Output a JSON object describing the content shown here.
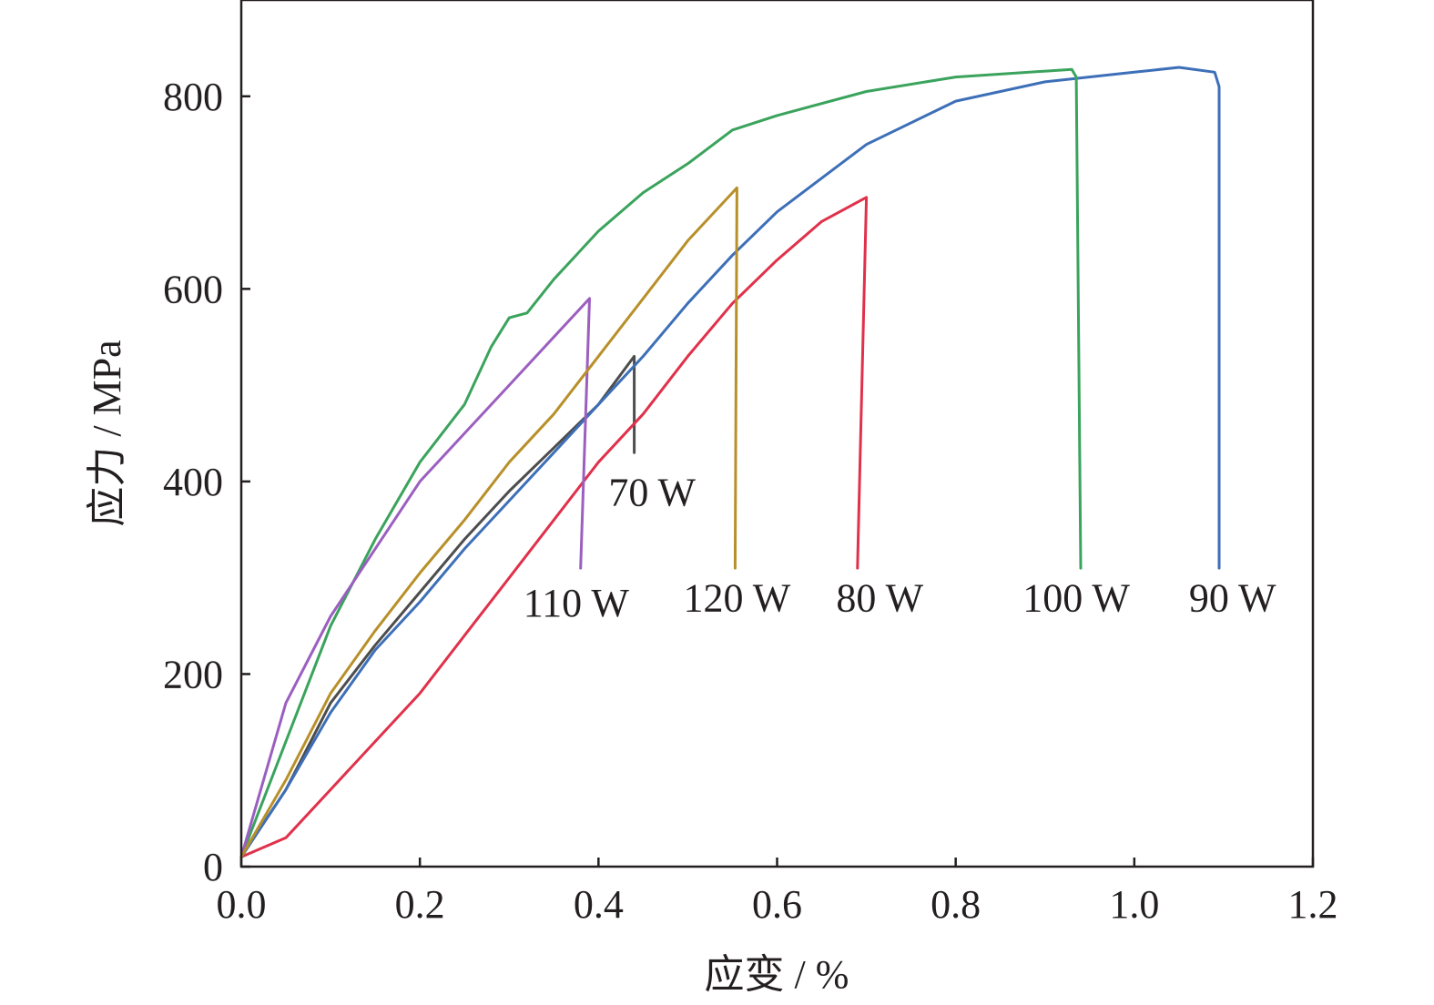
{
  "chart_data": {
    "type": "line",
    "xlabel": "应变 / %",
    "ylabel": "应力 / MPa",
    "xlim": [
      0.0,
      1.2
    ],
    "ylim": [
      0,
      900
    ],
    "x_ticks": [
      {
        "value": 0.0,
        "label": "0.0"
      },
      {
        "value": 0.2,
        "label": "0.2"
      },
      {
        "value": 0.4,
        "label": "0.4"
      },
      {
        "value": 0.6,
        "label": "0.6"
      },
      {
        "value": 0.8,
        "label": "0.8"
      },
      {
        "value": 1.0,
        "label": "1.0"
      },
      {
        "value": 1.2,
        "label": "1.2"
      }
    ],
    "y_ticks": [
      {
        "value": 0,
        "label": "0"
      },
      {
        "value": 200,
        "label": "200"
      },
      {
        "value": 400,
        "label": "400"
      },
      {
        "value": 600,
        "label": "600"
      },
      {
        "value": 800,
        "label": "800"
      }
    ],
    "grid": false,
    "series": [
      {
        "name": "70 W",
        "color": "#4d4d4d",
        "points": [
          [
            0.0,
            10
          ],
          [
            0.05,
            80
          ],
          [
            0.1,
            170
          ],
          [
            0.15,
            230
          ],
          [
            0.2,
            285
          ],
          [
            0.25,
            340
          ],
          [
            0.3,
            390
          ],
          [
            0.35,
            435
          ],
          [
            0.4,
            480
          ],
          [
            0.44,
            530
          ],
          [
            0.44,
            430
          ]
        ]
      },
      {
        "name": "80 W",
        "color": "#e0314b",
        "points": [
          [
            0.0,
            10
          ],
          [
            0.05,
            30
          ],
          [
            0.1,
            80
          ],
          [
            0.15,
            130
          ],
          [
            0.2,
            180
          ],
          [
            0.25,
            240
          ],
          [
            0.3,
            300
          ],
          [
            0.35,
            360
          ],
          [
            0.4,
            420
          ],
          [
            0.45,
            470
          ],
          [
            0.5,
            530
          ],
          [
            0.55,
            585
          ],
          [
            0.6,
            630
          ],
          [
            0.65,
            670
          ],
          [
            0.7,
            695
          ],
          [
            0.69,
            310
          ]
        ]
      },
      {
        "name": "90 W",
        "color": "#3d6fb8",
        "points": [
          [
            0.0,
            10
          ],
          [
            0.05,
            80
          ],
          [
            0.1,
            160
          ],
          [
            0.15,
            225
          ],
          [
            0.2,
            275
          ],
          [
            0.25,
            330
          ],
          [
            0.3,
            380
          ],
          [
            0.35,
            430
          ],
          [
            0.4,
            480
          ],
          [
            0.45,
            530
          ],
          [
            0.5,
            585
          ],
          [
            0.55,
            635
          ],
          [
            0.6,
            680
          ],
          [
            0.65,
            715
          ],
          [
            0.7,
            750
          ],
          [
            0.8,
            795
          ],
          [
            0.9,
            815
          ],
          [
            1.0,
            825
          ],
          [
            1.05,
            830
          ],
          [
            1.09,
            825
          ],
          [
            1.095,
            810
          ],
          [
            1.095,
            310
          ]
        ]
      },
      {
        "name": "100 W",
        "color": "#3aa35c",
        "points": [
          [
            0.0,
            10
          ],
          [
            0.05,
            130
          ],
          [
            0.1,
            250
          ],
          [
            0.15,
            340
          ],
          [
            0.2,
            420
          ],
          [
            0.25,
            480
          ],
          [
            0.28,
            540
          ],
          [
            0.3,
            570
          ],
          [
            0.32,
            575
          ],
          [
            0.35,
            610
          ],
          [
            0.4,
            660
          ],
          [
            0.45,
            700
          ],
          [
            0.5,
            730
          ],
          [
            0.55,
            765
          ],
          [
            0.6,
            780
          ],
          [
            0.7,
            805
          ],
          [
            0.8,
            820
          ],
          [
            0.93,
            828
          ],
          [
            0.935,
            820
          ],
          [
            0.94,
            310
          ]
        ]
      },
      {
        "name": "110 W",
        "color": "#9b5fc0",
        "points": [
          [
            0.0,
            10
          ],
          [
            0.05,
            170
          ],
          [
            0.1,
            260
          ],
          [
            0.15,
            330
          ],
          [
            0.2,
            400
          ],
          [
            0.25,
            450
          ],
          [
            0.3,
            500
          ],
          [
            0.35,
            550
          ],
          [
            0.39,
            590
          ],
          [
            0.38,
            310
          ]
        ]
      },
      {
        "name": "120 W",
        "color": "#b8902a",
        "points": [
          [
            0.0,
            10
          ],
          [
            0.05,
            90
          ],
          [
            0.1,
            180
          ],
          [
            0.15,
            245
          ],
          [
            0.2,
            305
          ],
          [
            0.25,
            360
          ],
          [
            0.3,
            420
          ],
          [
            0.35,
            470
          ],
          [
            0.4,
            530
          ],
          [
            0.45,
            590
          ],
          [
            0.5,
            650
          ],
          [
            0.55,
            700
          ],
          [
            0.555,
            705
          ],
          [
            0.553,
            310
          ]
        ]
      }
    ],
    "annotations": [
      {
        "text": "70 W",
        "x": 0.46,
        "y": 375
      },
      {
        "text": "110 W",
        "x": 0.375,
        "y": 260
      },
      {
        "text": "120 W",
        "x": 0.555,
        "y": 265
      },
      {
        "text": "80 W",
        "x": 0.715,
        "y": 265
      },
      {
        "text": "100 W",
        "x": 0.935,
        "y": 265
      },
      {
        "text": "90 W",
        "x": 1.11,
        "y": 265
      }
    ]
  }
}
